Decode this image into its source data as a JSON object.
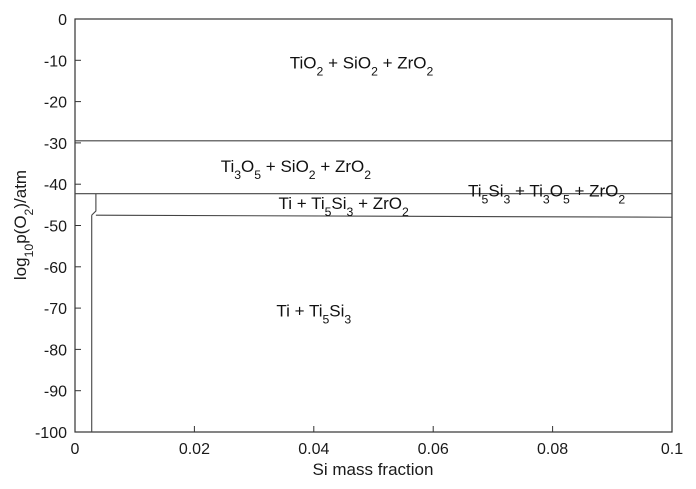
{
  "chart_data": {
    "type": "line",
    "title": "",
    "xlabel": "Si mass fraction",
    "ylabel": "log10p(O2)/atm",
    "xlim": [
      0,
      0.1
    ],
    "ylim": [
      -100,
      0
    ],
    "x_ticks": [
      "0",
      "0.02",
      "0.04",
      "0.06",
      "0.08",
      "0.1"
    ],
    "y_ticks": [
      "0",
      "-10",
      "-20",
      "-30",
      "-40",
      "-50",
      "-60",
      "-70",
      "-80",
      "-90",
      "-100"
    ],
    "grid": false,
    "legend": "none",
    "series": [
      {
        "x": [
          0,
          0.1
        ],
        "y": [
          -29.5,
          -29.5
        ]
      },
      {
        "x": [
          0,
          0.1
        ],
        "y": [
          -42.3,
          -42.3
        ]
      },
      {
        "x": [
          0.0035,
          0.1
        ],
        "y": [
          -47.5,
          -48.0
        ]
      },
      {
        "x": [
          0.0035,
          0.0035,
          0.0028
        ],
        "y": [
          -42.3,
          -46.5,
          -47.5
        ]
      },
      {
        "x": [
          0.0028,
          0.0028
        ],
        "y": [
          -47.5,
          -100
        ]
      }
    ],
    "region_labels": [
      {
        "text": "TiO₂ + SiO₂ + ZrO₂",
        "x": 0.048,
        "y": -12
      },
      {
        "text": "Ti₃O₅ + SiO₂ + ZrO₂",
        "x": 0.037,
        "y": -37
      },
      {
        "text": "Ti₅Si₃ + Ti₃O₅ + ZrO₂",
        "x": 0.079,
        "y": -43
      },
      {
        "text": "Ti + Ti₅Si₃ + ZrO₂",
        "x": 0.045,
        "y": -46
      },
      {
        "text": "Ti + Ti₅Si₃",
        "x": 0.04,
        "y": -72
      }
    ]
  }
}
